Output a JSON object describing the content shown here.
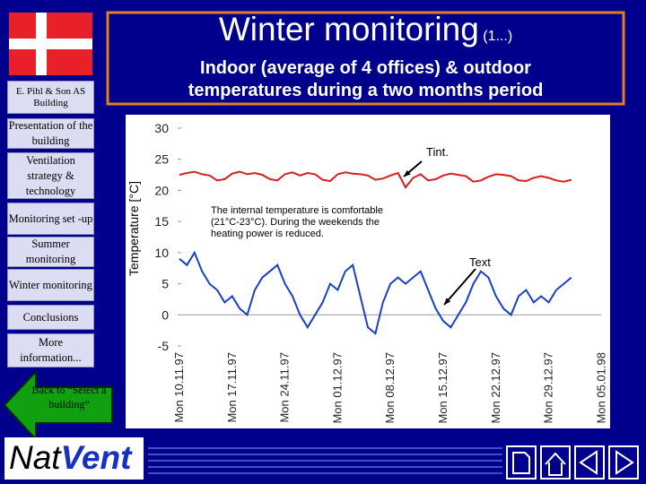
{
  "header": {
    "title": "Winter monitoring",
    "title_suffix": "(1...)",
    "subtitle": "Indoor (average of 4 offices) & outdoor temperatures during a two months period"
  },
  "company": "E. Pihl & Son AS Building",
  "menu": [
    "Presentation of the building",
    "Ventilation strategy & technology",
    "Monitoring set -up",
    "Summer monitoring",
    "Winter monitoring",
    "Conclusions",
    "More information..."
  ],
  "back_button": "Back to “Select a building”",
  "logo": {
    "part1": "Nat",
    "part2": "Vent"
  },
  "chart_data": {
    "type": "line",
    "y_label": "Temperature [°C]",
    "annotation": "The internal temperature is comfortable (21°C-23°C). During the weekends the heating power is reduced.",
    "categories": [
      "Mon 10.11.97",
      null,
      null,
      null,
      null,
      null,
      null,
      "Mon 17.11.97",
      null,
      null,
      null,
      null,
      null,
      null,
      "Mon 24.11.97",
      null,
      null,
      null,
      null,
      null,
      null,
      "Mon 01.12.97",
      null,
      null,
      null,
      null,
      null,
      null,
      "Mon 08.12.97",
      null,
      null,
      null,
      null,
      null,
      null,
      "Mon 15.12.97",
      null,
      null,
      null,
      null,
      null,
      null,
      "Mon 22.12.97",
      null,
      null,
      null,
      null,
      null,
      null,
      "Mon 29.12.97",
      null,
      null,
      null,
      null,
      null,
      null,
      "Mon 05.01.98"
    ],
    "series": [
      {
        "name": "Tint.",
        "color": "#d42020",
        "values": [
          22.5,
          22.8,
          23.0,
          22.6,
          22.4,
          21.6,
          21.8,
          22.7,
          23.0,
          22.6,
          22.8,
          22.5,
          21.8,
          21.6,
          22.6,
          22.9,
          22.4,
          22.8,
          22.6,
          21.7,
          21.5,
          22.6,
          22.9,
          22.7,
          22.6,
          22.4,
          21.7,
          21.9,
          22.4,
          22.8,
          20.5,
          22.0,
          22.6,
          21.6,
          21.8,
          22.4,
          22.7,
          22.5,
          22.3,
          21.4,
          21.6,
          22.2,
          22.6,
          22.5,
          22.3,
          21.6,
          21.5,
          22.0,
          22.3,
          22.0,
          21.6,
          21.4,
          21.7,
          null,
          null,
          null,
          null
        ]
      },
      {
        "name": "Text",
        "color": "#1840c8",
        "values": [
          9,
          8,
          10,
          7,
          5,
          4,
          2,
          3,
          1,
          0,
          4,
          6,
          7,
          8,
          5,
          3,
          0,
          -2,
          0,
          2,
          5,
          4,
          7,
          8,
          3,
          -2,
          -3,
          2,
          5,
          6,
          5,
          6,
          7,
          4,
          1,
          -1,
          -2,
          0,
          2,
          5,
          7,
          6,
          3,
          1,
          0,
          3,
          4,
          2,
          3,
          2,
          4,
          5,
          6,
          null,
          null,
          null,
          null
        ]
      }
    ],
    "ylim": [
      -5,
      30
    ],
    "yticks": [
      -5,
      0,
      5,
      10,
      15,
      20,
      25,
      30
    ]
  }
}
